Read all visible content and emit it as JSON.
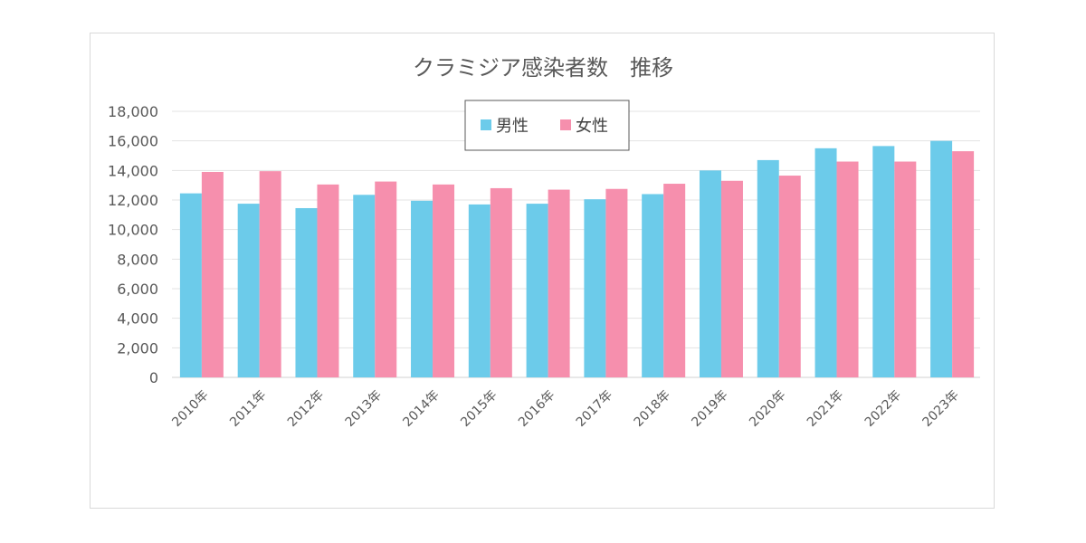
{
  "chart_data": {
    "type": "bar",
    "title": "クラミジア感染者数　推移",
    "categories": [
      "2010年",
      "2011年",
      "2012年",
      "2013年",
      "2014年",
      "2015年",
      "2016年",
      "2017年",
      "2018年",
      "2019年",
      "2020年",
      "2021年",
      "2022年",
      "2023年"
    ],
    "series": [
      {
        "name": "男性",
        "color": "#6ccbea",
        "values": [
          12450,
          11750,
          11450,
          12350,
          11950,
          11700,
          11750,
          12050,
          12400,
          14000,
          14700,
          15500,
          15650,
          16000
        ]
      },
      {
        "name": "女性",
        "color": "#f68fad",
        "values": [
          13900,
          13950,
          13050,
          13250,
          13050,
          12800,
          12700,
          12750,
          13100,
          13300,
          13650,
          14600,
          14600,
          15300
        ]
      }
    ],
    "ylim": [
      0,
      18000
    ],
    "yticks": [
      "0",
      "2,000",
      "4,000",
      "6,000",
      "8,000",
      "10,000",
      "12,000",
      "14,000",
      "16,000",
      "18,000"
    ],
    "xlabel": "",
    "ylabel": "",
    "grid": true,
    "legend": "top-center"
  }
}
